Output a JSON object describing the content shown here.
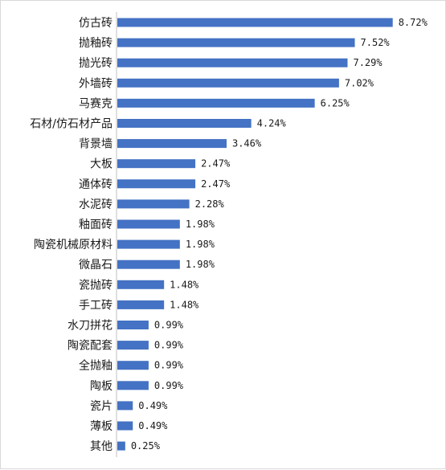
{
  "chart_data": {
    "type": "bar",
    "orientation": "horizontal",
    "categories": [
      "仿古砖",
      "抛釉砖",
      "抛光砖",
      "外墙砖",
      "马赛克",
      "石材/仿石材产品",
      "背景墙",
      "大板",
      "通体砖",
      "水泥砖",
      "釉面砖",
      "陶瓷机械原材料",
      "微晶石",
      "瓷抛砖",
      "手工砖",
      "水刀拼花",
      "陶瓷配套",
      "全抛釉",
      "陶板",
      "瓷片",
      "薄板",
      "其他"
    ],
    "values": [
      8.72,
      7.52,
      7.29,
      7.02,
      6.25,
      4.24,
      3.46,
      2.47,
      2.47,
      2.28,
      1.98,
      1.98,
      1.98,
      1.48,
      1.48,
      0.99,
      0.99,
      0.99,
      0.99,
      0.49,
      0.49,
      0.25
    ],
    "value_labels": [
      "8.72%",
      "7.52%",
      "7.29%",
      "7.02%",
      "6.25%",
      "4.24%",
      "3.46%",
      "2.47%",
      "2.47%",
      "2.28%",
      "1.98%",
      "1.98%",
      "1.98%",
      "1.48%",
      "1.48%",
      "0.99%",
      "0.99%",
      "0.99%",
      "0.99%",
      "0.49%",
      "0.49%",
      "0.25%"
    ],
    "unit": "%",
    "title": "",
    "xlabel": "",
    "ylabel": "",
    "xlim": [
      0,
      10
    ],
    "grid": false,
    "legend": "none",
    "bar_color": "#4472c4"
  }
}
